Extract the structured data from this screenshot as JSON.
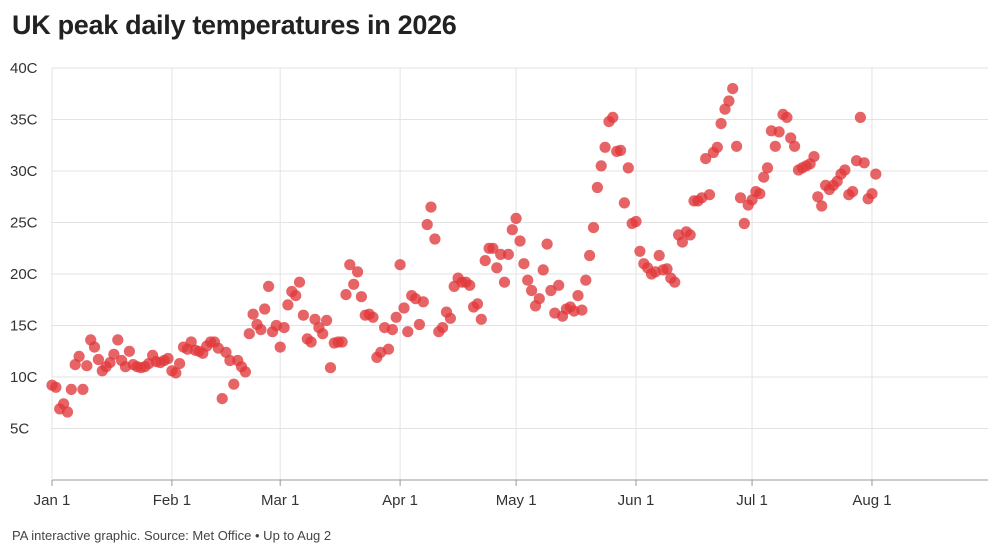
{
  "title": "UK peak daily temperatures in 2026",
  "footer": "PA interactive graphic. Source: Met Office • Up to Aug 2",
  "colors": {
    "dot": "#e0383b",
    "grid": "#e3e3e3",
    "text": "#222222"
  },
  "chart_data": {
    "type": "scatter",
    "title": "UK peak daily temperatures in 2026",
    "xlabel": "",
    "ylabel": "",
    "x_unit": "day of year 2026",
    "ylim": [
      0,
      40
    ],
    "xlim": [
      "2026-01-01",
      "2026-08-31"
    ],
    "grid": true,
    "legend": "none",
    "y_ticks": [
      {
        "value": 5,
        "label": "5C"
      },
      {
        "value": 10,
        "label": "10C"
      },
      {
        "value": 15,
        "label": "15C"
      },
      {
        "value": 20,
        "label": "20C"
      },
      {
        "value": 25,
        "label": "25C"
      },
      {
        "value": 30,
        "label": "30C"
      },
      {
        "value": 35,
        "label": "35C"
      },
      {
        "value": 40,
        "label": "40C"
      }
    ],
    "x_ticks": [
      {
        "date": "2026-01-01",
        "label": "Jan 1"
      },
      {
        "date": "2026-02-01",
        "label": "Feb 1"
      },
      {
        "date": "2026-03-01",
        "label": "Mar 1"
      },
      {
        "date": "2026-04-01",
        "label": "Apr 1"
      },
      {
        "date": "2026-05-01",
        "label": "May 1"
      },
      {
        "date": "2026-06-01",
        "label": "Jun 1"
      },
      {
        "date": "2026-07-01",
        "label": "Jul 1"
      },
      {
        "date": "2026-08-01",
        "label": "Aug 1"
      }
    ],
    "series": [
      {
        "start_date": "2026-01-01",
        "values": [
          9.2,
          9.0,
          6.9,
          7.4,
          6.6,
          8.8,
          11.2,
          12.0,
          8.8,
          11.1,
          13.6,
          12.9,
          11.7,
          10.6,
          11.0,
          11.4,
          12.2,
          13.6,
          11.6,
          11.0,
          12.5,
          11.2,
          11.0,
          10.9,
          11.0,
          11.3,
          12.1,
          11.5,
          11.4,
          11.6,
          11.8,
          10.6,
          10.4,
          11.3,
          12.9,
          12.7,
          13.4,
          12.6,
          12.5,
          12.3,
          13.0,
          13.4,
          13.4,
          12.8,
          7.9,
          12.4,
          11.6,
          9.3,
          11.6,
          11.0,
          10.5,
          14.2,
          16.1,
          15.1,
          14.6,
          16.6,
          18.8,
          14.4,
          15.0,
          12.9,
          14.8,
          17.0,
          18.3,
          17.9,
          19.2,
          16.0,
          13.7,
          13.4,
          15.6,
          14.8,
          14.2,
          15.5,
          10.9,
          13.3,
          13.4,
          13.4,
          18.0,
          20.9,
          19.0,
          20.2,
          17.8,
          16.0,
          16.1,
          15.8,
          11.9,
          12.4,
          14.8,
          12.7,
          14.6,
          15.8,
          20.9,
          16.7,
          14.4,
          17.9,
          17.6,
          15.1,
          17.3,
          24.8,
          26.5,
          23.4,
          14.4,
          14.8,
          16.3,
          15.7,
          18.8,
          19.6,
          19.2,
          19.2,
          18.9,
          16.8,
          17.1,
          15.6,
          21.3,
          22.5,
          22.5,
          20.6,
          21.9,
          19.2,
          21.9,
          24.3,
          25.4,
          23.2,
          21.0,
          19.4,
          18.4,
          16.9,
          17.6,
          20.4,
          22.9,
          18.4,
          16.2,
          18.9,
          15.9,
          16.6,
          16.8,
          16.4,
          17.9,
          16.5,
          19.4,
          21.8,
          24.5,
          28.4,
          30.5,
          32.3,
          34.8,
          35.2,
          31.9,
          32.0,
          26.9,
          30.3,
          24.9,
          25.1,
          22.2,
          21.0,
          20.6,
          20.0,
          20.2,
          21.8,
          20.4,
          20.5,
          19.6,
          19.2,
          23.8,
          23.1,
          24.1,
          23.8,
          27.1,
          27.1,
          27.4,
          31.2,
          27.7,
          31.8,
          32.3,
          34.6,
          36.0,
          36.8,
          38.0,
          32.4,
          27.4,
          24.9,
          26.7,
          27.2,
          28.0,
          27.8,
          29.4,
          30.3,
          33.9,
          32.4,
          33.8,
          35.5,
          35.2,
          33.2,
          32.4,
          30.1,
          30.3,
          30.5,
          30.7,
          31.4,
          27.5,
          26.6,
          28.6,
          28.2,
          28.6,
          29.0,
          29.7,
          30.1,
          27.7,
          28.0,
          31.0,
          35.2,
          30.8,
          27.3,
          27.8,
          29.7
        ]
      }
    ]
  }
}
